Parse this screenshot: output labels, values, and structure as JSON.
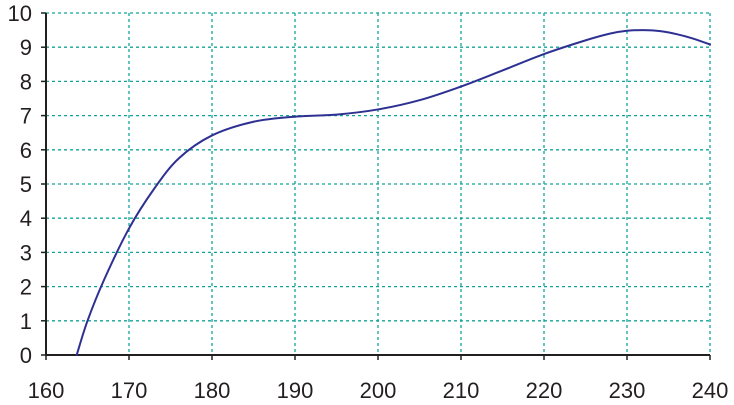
{
  "chart_data": {
    "type": "line",
    "title": "",
    "xlabel": "",
    "ylabel": "",
    "xlim": [
      160,
      240
    ],
    "ylim": [
      0,
      10
    ],
    "x_ticks": [
      160,
      170,
      180,
      190,
      200,
      210,
      220,
      230,
      240
    ],
    "y_ticks": [
      0,
      1,
      2,
      3,
      4,
      5,
      6,
      7,
      8,
      9,
      10
    ],
    "grid": true,
    "legend": "none",
    "colors": {
      "line": "#2e3192",
      "grid": "#14a39a",
      "axis": "#231f20",
      "text": "#231f20"
    },
    "series": [
      {
        "x": [
          163.7,
          165,
          167,
          170,
          173,
          176,
          180,
          185,
          190,
          195,
          200,
          205,
          210,
          215,
          220,
          225,
          228,
          230,
          232,
          234,
          236,
          238,
          240
        ],
        "y": [
          0,
          1.0,
          2.2,
          3.7,
          4.85,
          5.75,
          6.42,
          6.82,
          6.97,
          7.03,
          7.18,
          7.45,
          7.85,
          8.32,
          8.8,
          9.2,
          9.4,
          9.48,
          9.5,
          9.47,
          9.38,
          9.25,
          9.08
        ]
      }
    ]
  }
}
